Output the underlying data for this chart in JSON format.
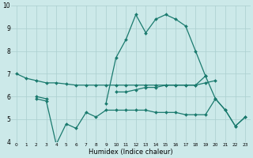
{
  "xlabel": "Humidex (Indice chaleur)",
  "x": [
    0,
    1,
    2,
    3,
    4,
    5,
    6,
    7,
    8,
    9,
    10,
    11,
    12,
    13,
    14,
    15,
    16,
    17,
    18,
    19,
    20,
    21,
    22,
    23
  ],
  "line_top": [
    7.0,
    6.8,
    6.7,
    6.6,
    6.6,
    6.55,
    6.5,
    6.5,
    6.5,
    6.5,
    6.5,
    6.5,
    6.5,
    6.5,
    6.5,
    6.5,
    6.5,
    6.5,
    6.5,
    6.9,
    null,
    null,
    null,
    null
  ],
  "line_mid": [
    null,
    null,
    6.0,
    5.9,
    null,
    null,
    null,
    null,
    null,
    null,
    6.2,
    6.2,
    6.3,
    6.4,
    6.4,
    6.5,
    6.5,
    6.5,
    6.5,
    6.6,
    6.7,
    null,
    null,
    null
  ],
  "line_low": [
    null,
    null,
    5.9,
    5.8,
    3.9,
    4.8,
    4.6,
    5.3,
    5.1,
    5.4,
    5.4,
    5.4,
    5.4,
    5.4,
    5.3,
    5.3,
    5.3,
    5.2,
    5.2,
    5.2,
    5.9,
    5.4,
    4.7,
    5.1
  ],
  "line_peak": [
    null,
    null,
    null,
    null,
    null,
    null,
    null,
    null,
    null,
    5.7,
    7.7,
    8.5,
    9.6,
    8.8,
    9.4,
    9.6,
    9.4,
    9.1,
    8.0,
    6.9,
    5.9,
    5.4,
    4.7,
    5.1
  ],
  "bg_color": "#cce9e9",
  "line_color": "#1a7a6e",
  "grid_color": "#aacfcf",
  "ylim": [
    4,
    10
  ],
  "xlim": [
    -0.5,
    23.5
  ],
  "yticks": [
    4,
    5,
    6,
    7,
    8,
    9,
    10
  ],
  "xticks": [
    0,
    1,
    2,
    3,
    4,
    5,
    6,
    7,
    8,
    9,
    10,
    11,
    12,
    13,
    14,
    15,
    16,
    17,
    18,
    19,
    20,
    21,
    22,
    23
  ]
}
